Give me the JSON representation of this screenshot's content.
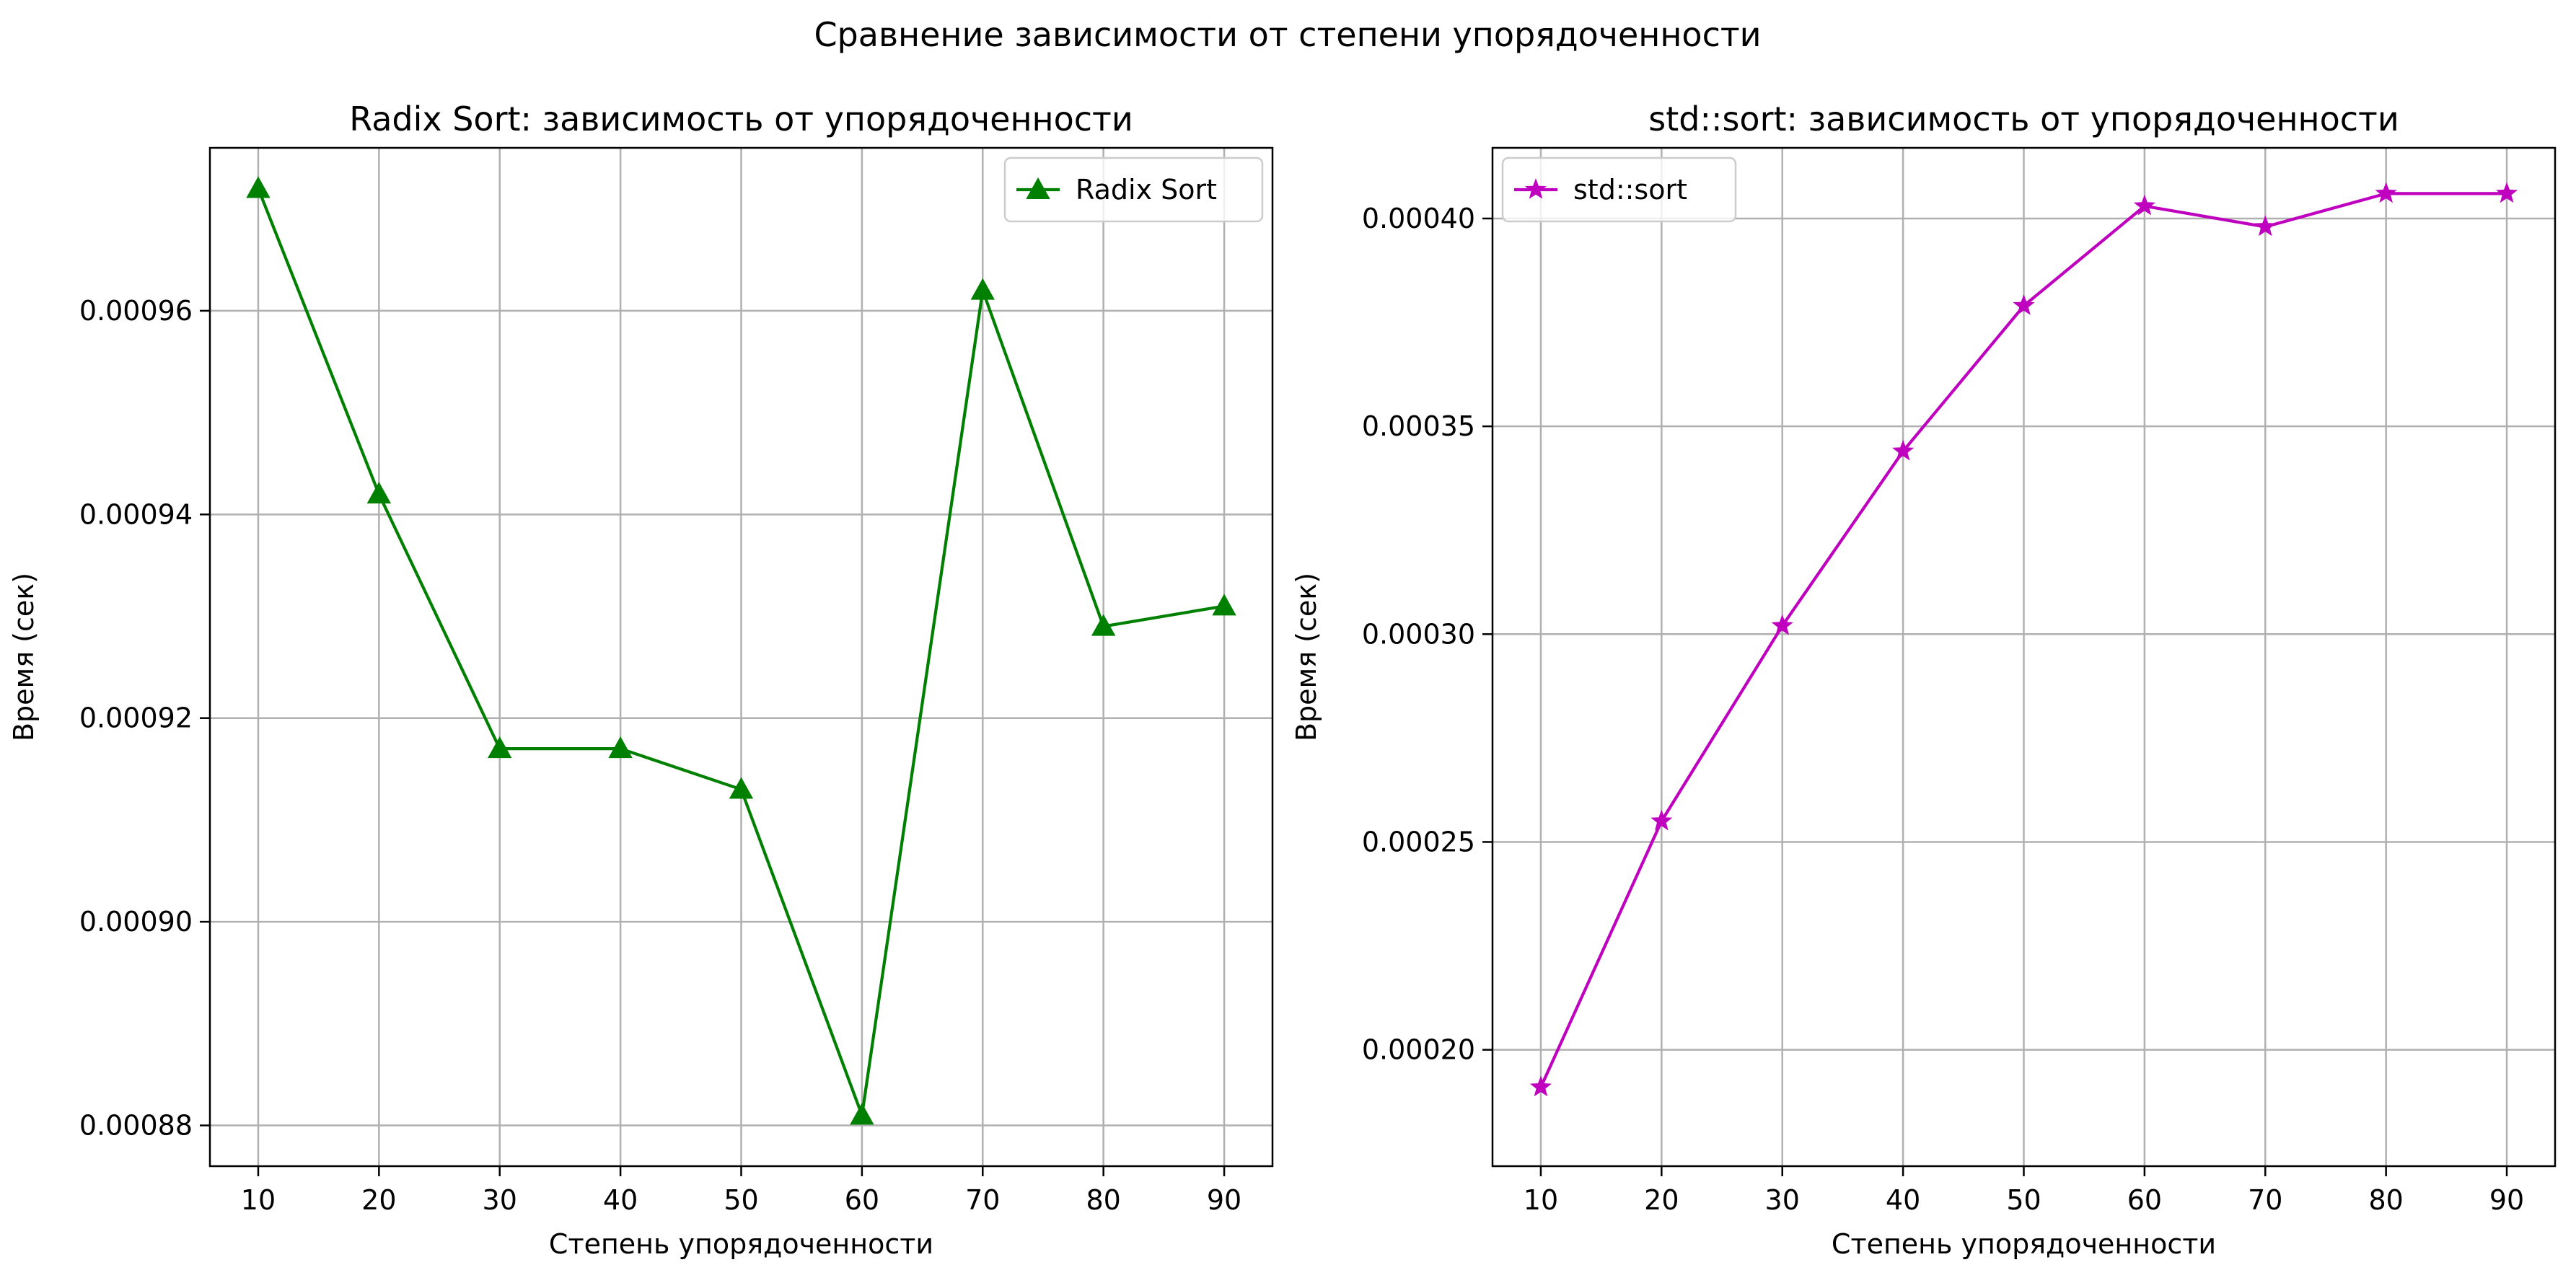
{
  "figure": {
    "suptitle": "Сравнение зависимости от степени упорядоченности"
  },
  "chart_data": [
    {
      "type": "line",
      "title": "Radix Sort: зависимость от упорядоченности",
      "xlabel": "Степень упорядоченности",
      "ylabel": "Время (сек)",
      "x": [
        10,
        20,
        30,
        40,
        50,
        60,
        70,
        80,
        90
      ],
      "xticks": [
        10,
        20,
        30,
        40,
        50,
        60,
        70,
        80,
        90
      ],
      "xlim": [
        6,
        94
      ],
      "ylim": [
        0.000876,
        0.000976
      ],
      "yticks": [
        0.00088,
        0.0009,
        0.00092,
        0.00094,
        0.00096
      ],
      "ytick_labels": [
        "0.00088",
        "0.00090",
        "0.00092",
        "0.00094",
        "0.00096"
      ],
      "grid": true,
      "legend_position": "upper right",
      "series": [
        {
          "name": "Radix Sort",
          "color": "#008000",
          "marker": "triangle-up",
          "values": [
            0.000972,
            0.000942,
            0.000917,
            0.000917,
            0.000913,
            0.000881,
            0.000962,
            0.000929,
            0.000931
          ]
        }
      ]
    },
    {
      "type": "line",
      "title": "std::sort: зависимость от упорядоченности",
      "xlabel": "Степень упорядоченности",
      "ylabel": "Время (сек)",
      "x": [
        10,
        20,
        30,
        40,
        50,
        60,
        70,
        80,
        90
      ],
      "xticks": [
        10,
        20,
        30,
        40,
        50,
        60,
        70,
        80,
        90
      ],
      "xlim": [
        6,
        94
      ],
      "ylim": [
        0.000172,
        0.000417
      ],
      "yticks": [
        0.0002,
        0.00025,
        0.0003,
        0.00035,
        0.0004
      ],
      "ytick_labels": [
        "0.00020",
        "0.00025",
        "0.00030",
        "0.00035",
        "0.00040"
      ],
      "grid": true,
      "legend_position": "upper left",
      "series": [
        {
          "name": "std::sort",
          "color": "#bf00bf",
          "marker": "star",
          "values": [
            0.000191,
            0.000255,
            0.000302,
            0.000344,
            0.000379,
            0.000403,
            0.000398,
            0.000406,
            0.000406
          ]
        }
      ]
    }
  ]
}
